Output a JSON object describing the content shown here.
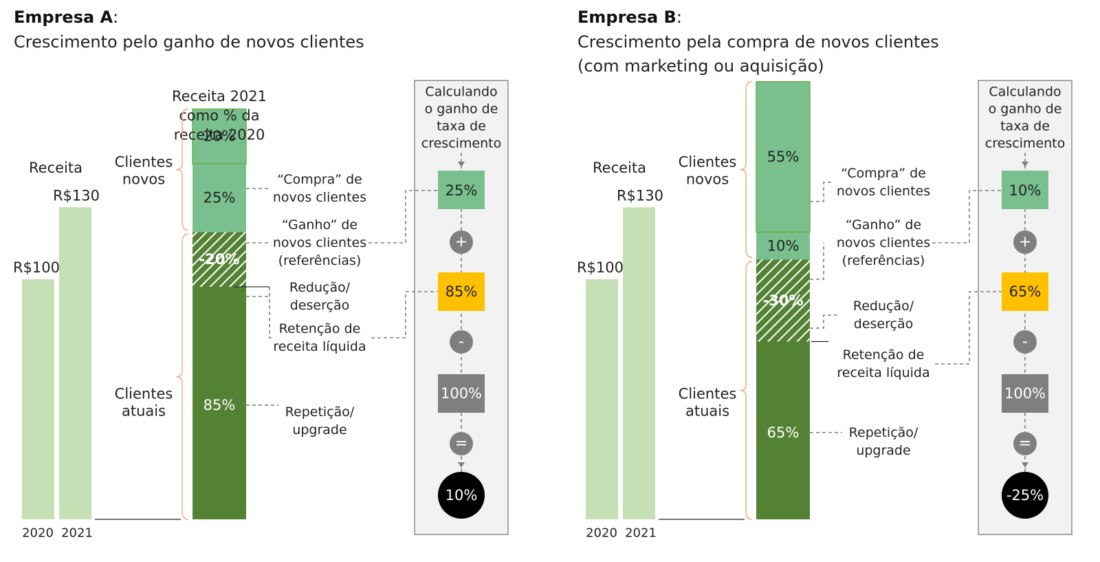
{
  "panels": [
    {
      "id": "a",
      "title_bold": "Empresa A",
      "title_colon": ":",
      "subtitle_lines": [
        "Crescimento pelo ganho de novos clientes"
      ],
      "revenue_label": "Receita",
      "revenue_2020": 100,
      "revenue_2020_label": "R$100",
      "revenue_2021": 130,
      "revenue_2021_label": "R$130",
      "year_labels": [
        "2020",
        "2021"
      ],
      "stack_title_lines": [
        "Receita 2021",
        "como % da",
        "receita 2020"
      ],
      "group_new_lines": [
        "Clientes",
        "novos"
      ],
      "group_current_lines": [
        "Clientes",
        "atuais"
      ],
      "segments": {
        "compra": {
          "value": 20,
          "label": "20%"
        },
        "ganho": {
          "value": 25,
          "label": "25%"
        },
        "reducao": {
          "value": -20,
          "label": "-20%"
        },
        "repeticao": {
          "value": 85,
          "label": "85%"
        }
      },
      "annotations": {
        "compra": [
          "“Compra” de",
          "novos clientes"
        ],
        "ganho": [
          "“Ganho” de",
          "novos clientes",
          "(referências)"
        ],
        "reducao": [
          "Redução/",
          "deserção"
        ],
        "retencao": [
          "Retenção de",
          "receita líquida"
        ],
        "repeticao": [
          "Repetição/",
          "upgrade"
        ]
      },
      "calc": {
        "header_lines": [
          "Calculando",
          "o ganho de",
          "taxa de",
          "crescimento"
        ],
        "ganho": "25%",
        "plus": "+",
        "retencao": "85%",
        "minus": "-",
        "base": "100%",
        "equals": "=",
        "result": "10%"
      }
    },
    {
      "id": "b",
      "title_bold": "Empresa B",
      "title_colon": ":",
      "subtitle_lines": [
        "Crescimento pela compra de novos clientes",
        "(com marketing ou aquisição)"
      ],
      "revenue_label": "Receita",
      "revenue_2020": 100,
      "revenue_2020_label": "R$100",
      "revenue_2021": 130,
      "revenue_2021_label": "R$130",
      "year_labels": [
        "2020",
        "2021"
      ],
      "stack_title_lines": [],
      "group_new_lines": [
        "Clientes",
        "novos"
      ],
      "group_current_lines": [
        "Clientes",
        "atuais"
      ],
      "segments": {
        "compra": {
          "value": 55,
          "label": "55%"
        },
        "ganho": {
          "value": 10,
          "label": "10%"
        },
        "reducao": {
          "value": -30,
          "label": "-30%"
        },
        "repeticao": {
          "value": 65,
          "label": "65%"
        }
      },
      "annotations": {
        "compra": [
          "“Compra” de",
          "novos clientes"
        ],
        "ganho": [
          "“Ganho” de",
          "novos clientes",
          "(referências)"
        ],
        "reducao": [
          "Redução/",
          "deserção"
        ],
        "retencao": [
          "Retenção de",
          "receita líquida"
        ],
        "repeticao": [
          "Repetição/",
          "upgrade"
        ]
      },
      "calc": {
        "header_lines": [
          "Calculando",
          "o ganho de",
          "taxa de",
          "crescimento"
        ],
        "ganho": "10%",
        "plus": "+",
        "retencao": "65%",
        "minus": "-",
        "base": "100%",
        "equals": "=",
        "result": "-25%"
      }
    }
  ],
  "colors": {
    "revenue_bar": "#c5e0b4",
    "new_segment": "#79c08e",
    "new_segment_border": "#70ad47",
    "current_segment": "#548235",
    "hatch": "#ffffff",
    "brace": "#f4b183",
    "calc_panel_bg": "#f2f2f2",
    "calc_panel_border": "#8c8c8c",
    "retention_box": "#ffc000",
    "base_box": "#7f7f7f",
    "operator_circle": "#7f7f7f",
    "result_circle": "#000000",
    "leader_line": "#7f7f7f"
  }
}
